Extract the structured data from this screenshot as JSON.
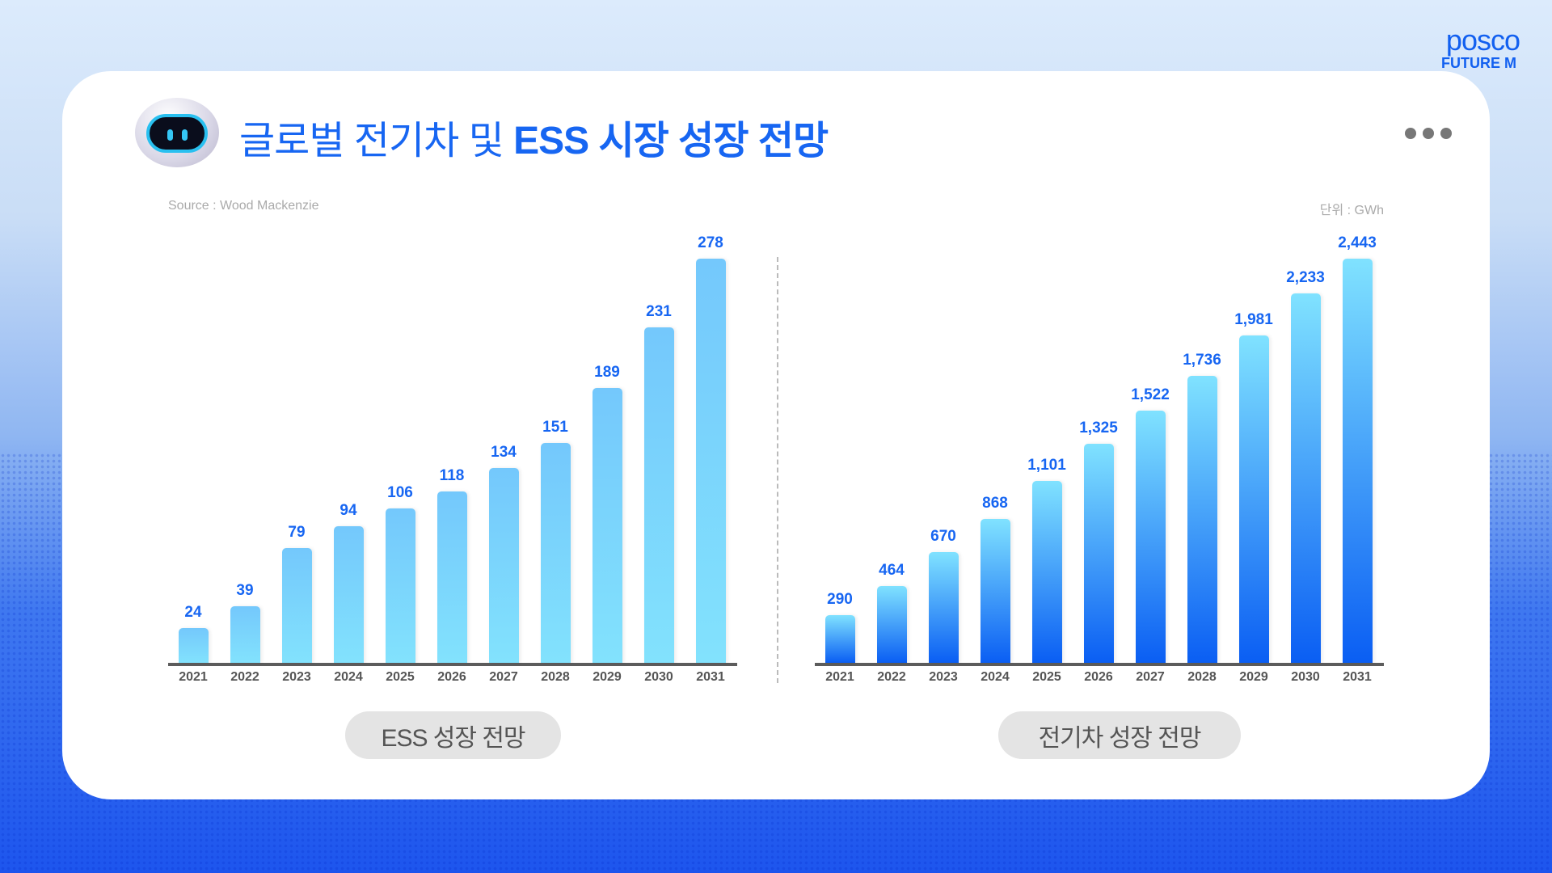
{
  "brand": {
    "name": "posco",
    "sub": "FUTURE M",
    "color": "#1260f0"
  },
  "header": {
    "title_light": "글로벌 전기차 및 ",
    "title_bold": "ESS 시장 성장 전망",
    "menu_icon": "more-dots-icon",
    "mascot_icon": "robot-mascot-icon"
  },
  "source": "Source : Wood Mackenzie",
  "unit": "단위 : GWh",
  "chart_data": [
    {
      "type": "bar",
      "title": "ESS 성장 전망",
      "ylabel": "GWh",
      "categories": [
        "2021",
        "2022",
        "2023",
        "2024",
        "2025",
        "2026",
        "2027",
        "2028",
        "2029",
        "2030",
        "2031"
      ],
      "values": [
        24,
        39,
        79,
        94,
        106,
        118,
        134,
        151,
        189,
        231,
        278
      ],
      "labels": [
        "24",
        "39",
        "79",
        "94",
        "106",
        "118",
        "134",
        "151",
        "189",
        "231",
        "278"
      ],
      "colors": [
        "#74c8fc",
        "#82e2fd"
      ]
    },
    {
      "type": "bar",
      "title": "전기차 성장 전망",
      "ylabel": "GWh",
      "categories": [
        "2021",
        "2022",
        "2023",
        "2024",
        "2025",
        "2026",
        "2027",
        "2028",
        "2029",
        "2030",
        "2031"
      ],
      "values": [
        290,
        464,
        670,
        868,
        1101,
        1325,
        1522,
        1736,
        1981,
        2233,
        2443
      ],
      "labels": [
        "290",
        "464",
        "670",
        "868",
        "1,101",
        "1,325",
        "1,522",
        "1,736",
        "1,981",
        "2,233",
        "2,443"
      ],
      "colors": [
        "#80e2ff",
        "#0a5ef3"
      ]
    }
  ]
}
